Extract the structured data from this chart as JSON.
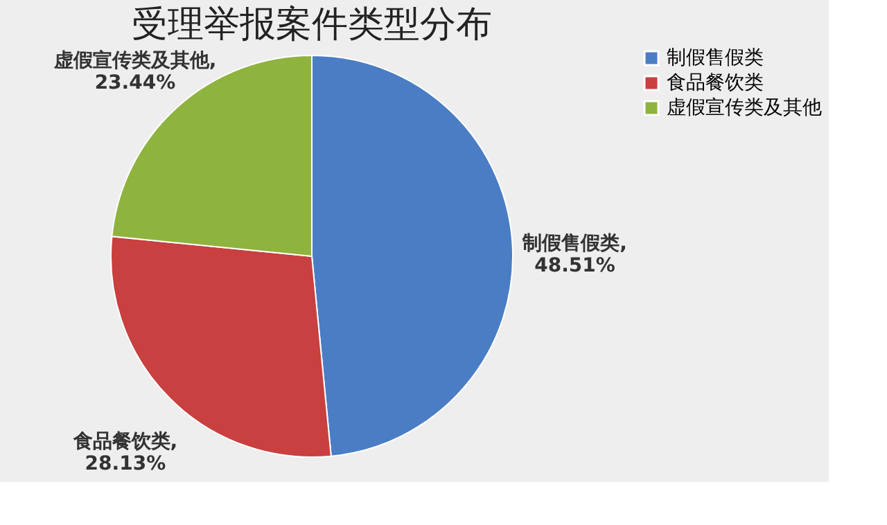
{
  "chart_data": {
    "type": "pie",
    "title": "受理举报案件类型分布",
    "categories": [
      "制假售假类",
      "食品餐饮类",
      "虚假宣传类及其他"
    ],
    "values": [
      48.51,
      28.13,
      23.44
    ],
    "colors": [
      "#4a7dc4",
      "#c8403f",
      "#8fb33f"
    ],
    "value_labels": [
      "制假售假类, 48.51%",
      "食品餐饮类, 28.13%",
      "虚假宣传类及其他, 23.44%"
    ],
    "legend": "right"
  }
}
